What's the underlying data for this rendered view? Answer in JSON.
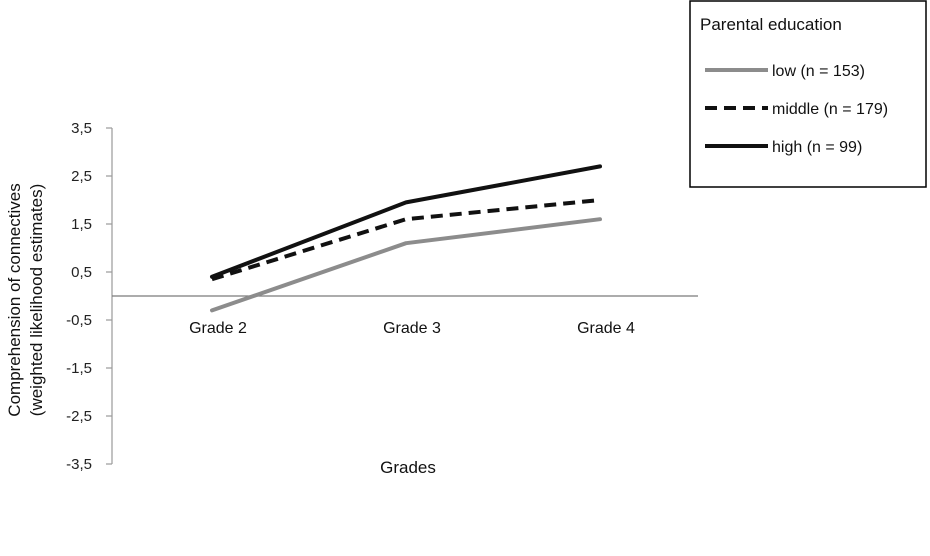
{
  "chart_data": {
    "type": "line",
    "categories": [
      "Grade 2",
      "Grade 3",
      "Grade 4"
    ],
    "series": [
      {
        "name": "low (n = 153)",
        "values": [
          -0.3,
          1.1,
          1.6
        ],
        "color": "#8c8c8c",
        "style": "solid"
      },
      {
        "name": "middle (n = 179)",
        "values": [
          0.35,
          1.6,
          2.0
        ],
        "color": "#111111",
        "style": "dashed"
      },
      {
        "name": "high (n = 99)",
        "values": [
          0.4,
          1.95,
          2.7
        ],
        "color": "#111111",
        "style": "solid"
      }
    ],
    "yticks": [
      "3,5",
      "2,5",
      "1,5",
      "0,5",
      "-0,5",
      "-1,5",
      "-2,5",
      "-3,5"
    ],
    "ytick_values": [
      3.5,
      2.5,
      1.5,
      0.5,
      -0.5,
      -1.5,
      -2.5,
      -3.5
    ],
    "ylim": [
      -3.5,
      3.5
    ],
    "xlabel": "Grades",
    "ylabel_line1": "Comprehension of connectives",
    "ylabel_line2": "(weighted likelihood  estimates)",
    "legend_title": "Parental education",
    "legend_position": "top-right",
    "grid": false
  }
}
